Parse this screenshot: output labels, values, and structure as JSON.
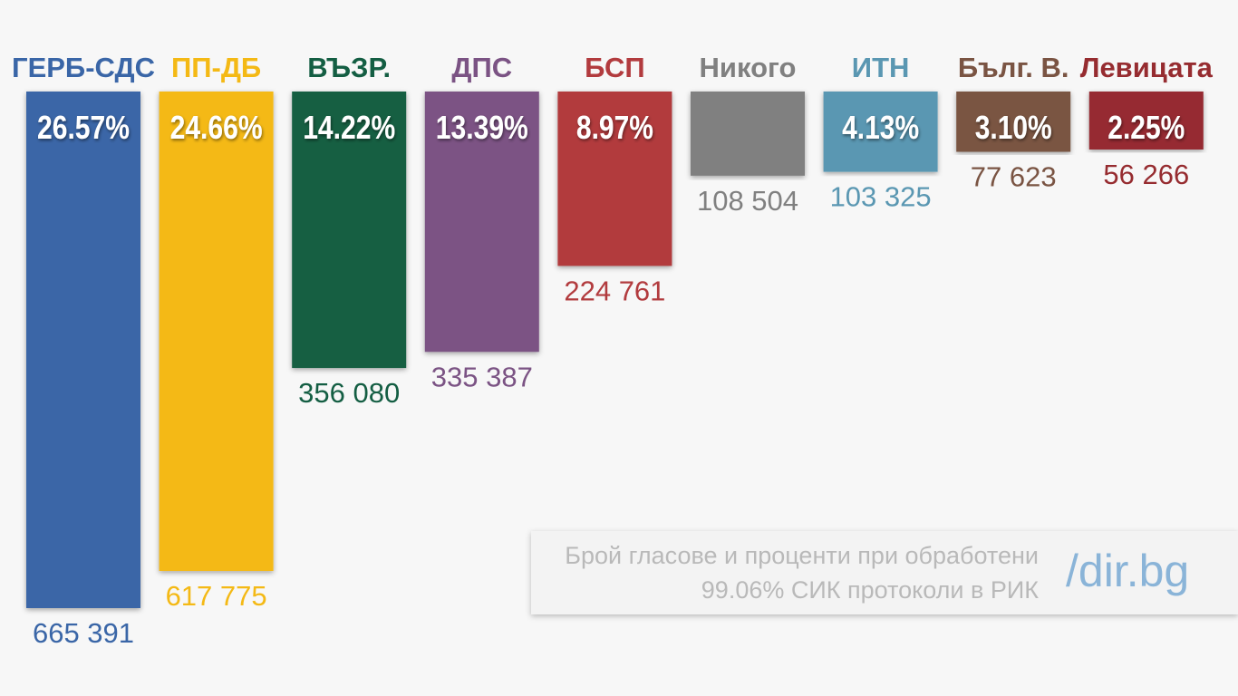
{
  "chart_data": {
    "type": "bar",
    "title": "",
    "xlabel": "",
    "ylabel": "",
    "ylim": [
      0,
      26.57
    ],
    "grid": false,
    "categories": [
      "ГЕРБ-СДС",
      "ПП-ДБ",
      "ВЪЗР.",
      "ДПС",
      "БСП",
      "Никого",
      "ИТН",
      "Бълг. В.",
      "Левицата"
    ],
    "values": [
      26.57,
      24.66,
      14.22,
      13.39,
      8.97,
      4.33,
      4.13,
      3.1,
      2.25
    ],
    "percent_labels": [
      "26.57%",
      "24.66%",
      "14.22%",
      "13.39%",
      "8.97%",
      "",
      "4.13%",
      "3.10%",
      "2.25%"
    ],
    "vote_labels": [
      "665 391",
      "617 775",
      "356 080",
      "335 387",
      "224 761",
      "108 504",
      "103 325",
      "77 623",
      "56 266"
    ],
    "colors": [
      "#3a66a7",
      "#f4b915",
      "#145e43",
      "#7b5384",
      "#b23b3e",
      "#808080",
      "#5a97b2",
      "#7a5443",
      "#962c30"
    ]
  },
  "note": {
    "line1": "Брой гласове и проценти при обработени",
    "line2": "99.06% СИК протоколи в РИК"
  },
  "brand": {
    "logo_text": "/dir.bg",
    "color": "#8ab4d8"
  }
}
